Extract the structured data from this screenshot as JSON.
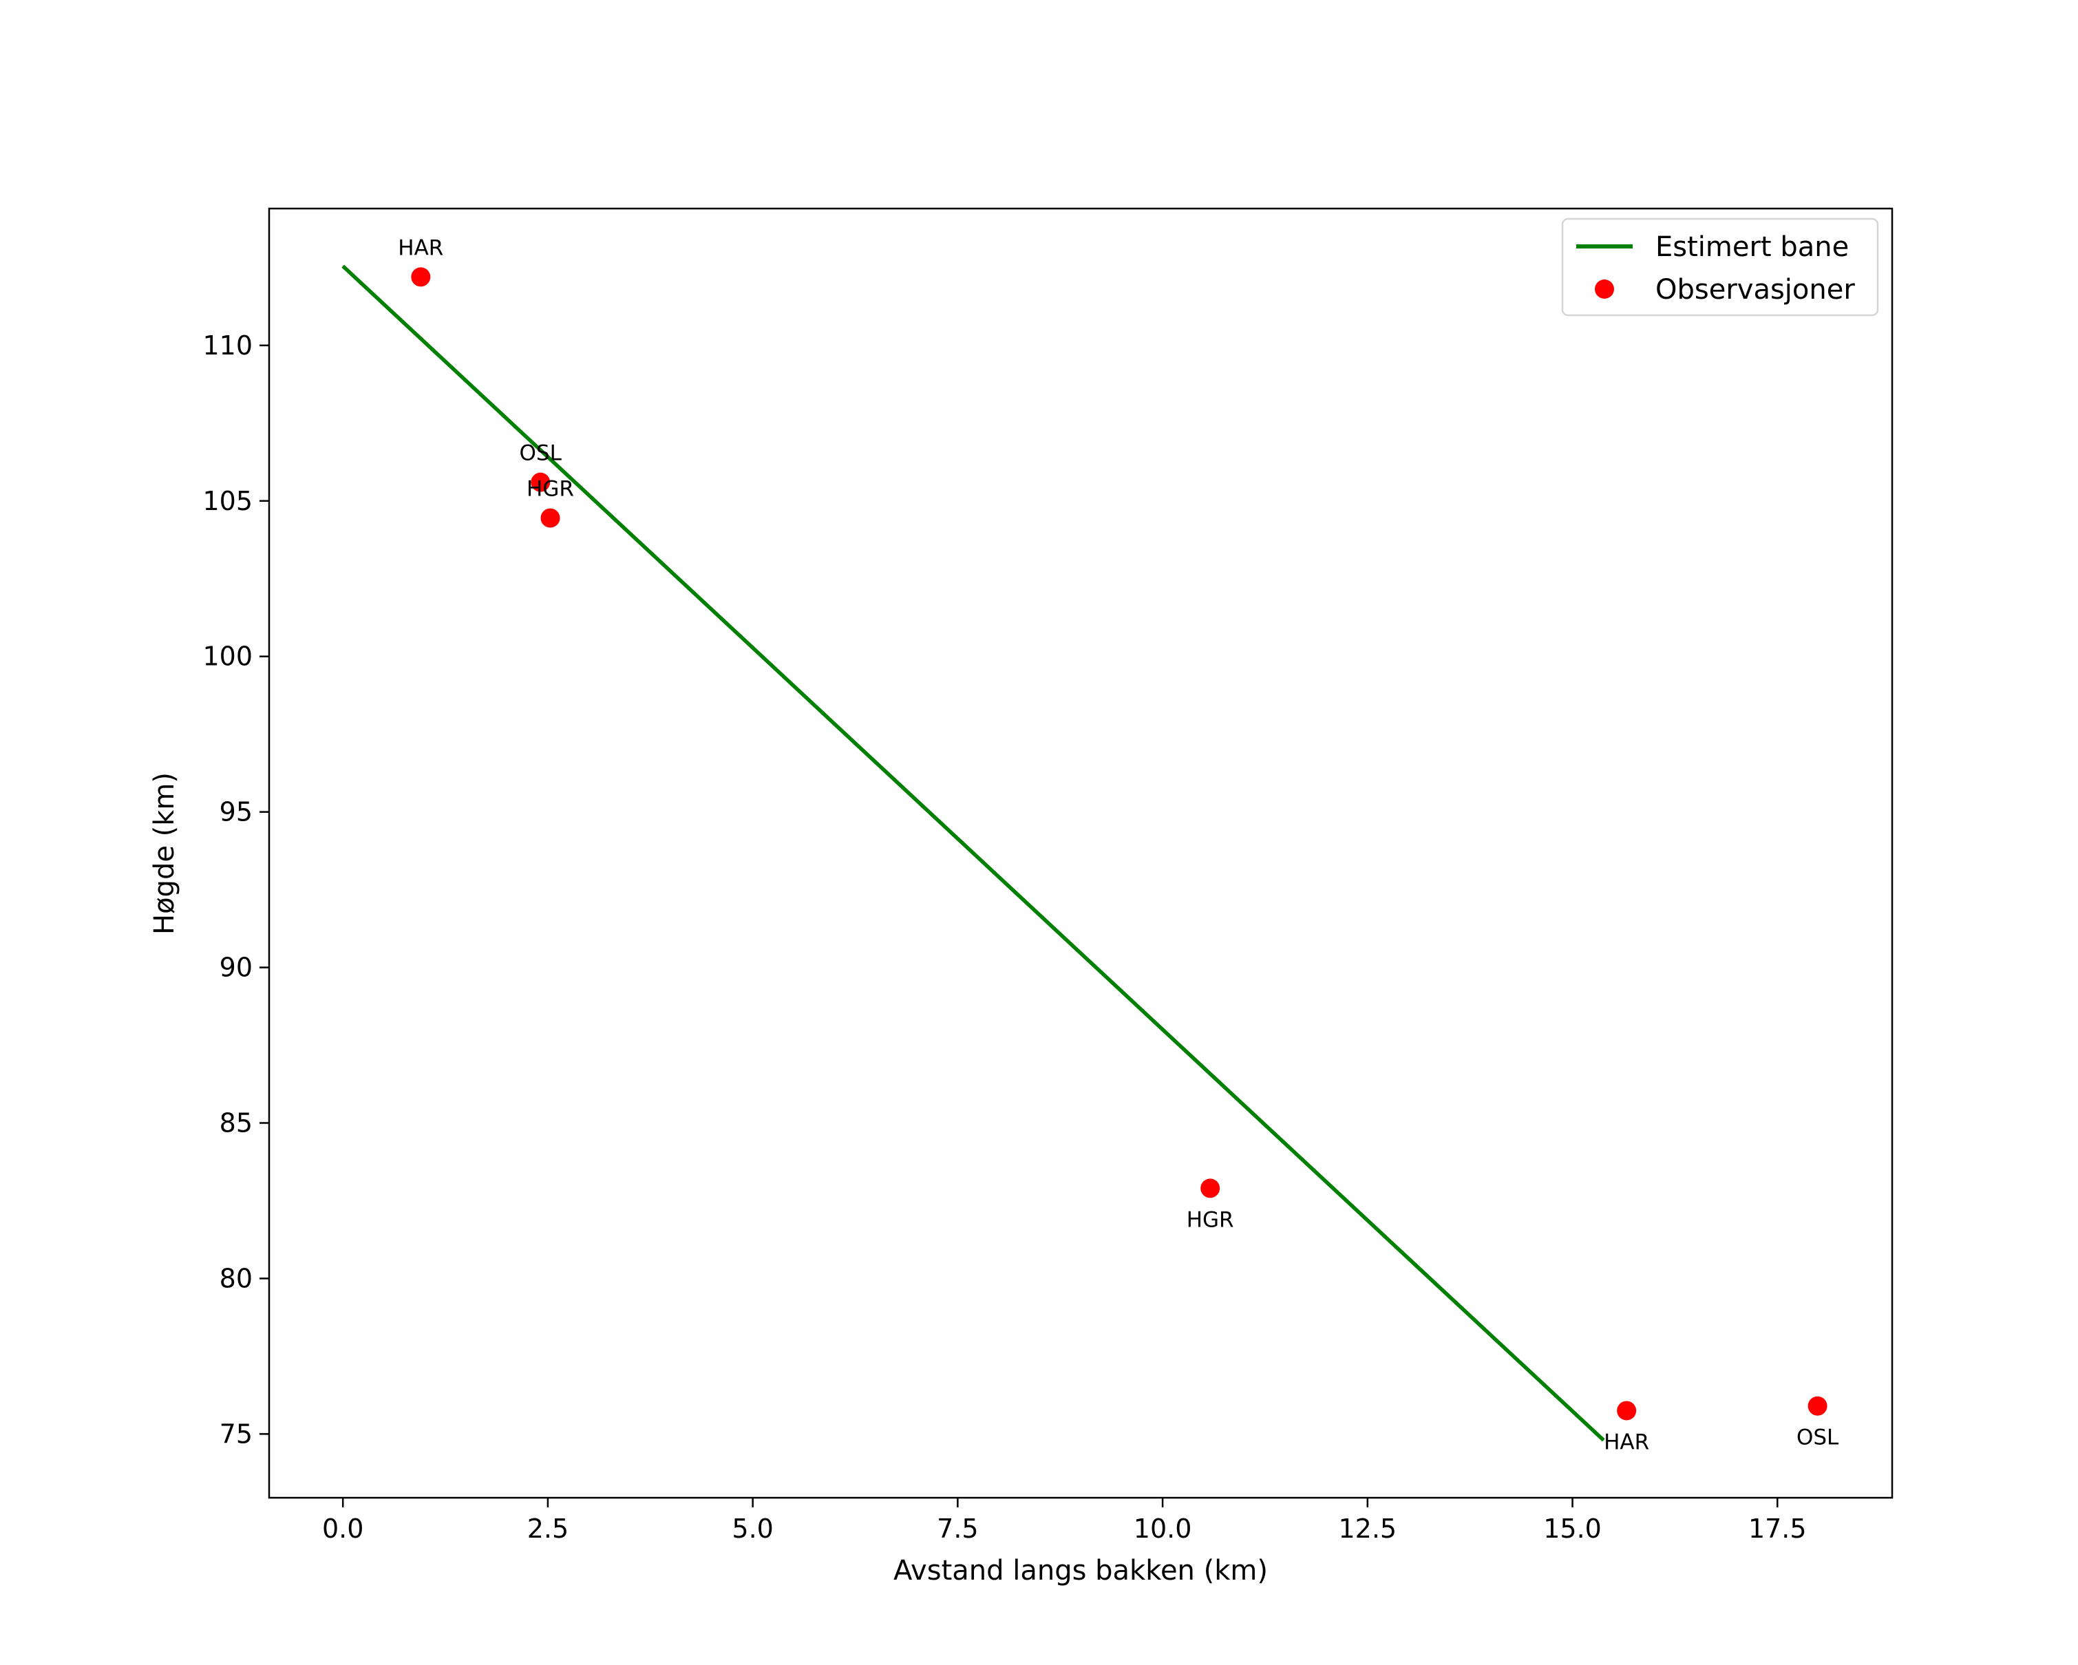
{
  "chart_data": {
    "type": "scatter",
    "title": "",
    "xlabel": "Avstand langs bakken (km)",
    "ylabel": "Høgde (km)",
    "xlim": [
      -0.9,
      18.9
    ],
    "ylim": [
      72.95,
      114.4
    ],
    "xticks": [
      0.0,
      2.5,
      5.0,
      7.5,
      10.0,
      12.5,
      15.0,
      17.5
    ],
    "xtick_labels": [
      "0.0",
      "2.5",
      "5.0",
      "7.5",
      "10.0",
      "12.5",
      "15.0",
      "17.5"
    ],
    "yticks": [
      75,
      80,
      85,
      90,
      95,
      100,
      105,
      110
    ],
    "ytick_labels": [
      "75",
      "80",
      "85",
      "90",
      "95",
      "100",
      "105",
      "110"
    ],
    "grid": false,
    "legend_position": "top-right",
    "series": [
      {
        "name": "Estimert bane",
        "kind": "line",
        "color": "#008000",
        "x": [
          0.0,
          15.38
        ],
        "y": [
          112.55,
          74.8
        ]
      },
      {
        "name": "Observasjoner",
        "kind": "scatter",
        "color": "#ff0000",
        "points": [
          {
            "x": 0.95,
            "y": 112.2,
            "label": "HAR",
            "label_pos": "above"
          },
          {
            "x": 2.41,
            "y": 105.6,
            "label": "OSL",
            "label_pos": "above"
          },
          {
            "x": 2.53,
            "y": 104.45,
            "label": "HGR",
            "label_pos": "above"
          },
          {
            "x": 10.58,
            "y": 82.9,
            "label": "HGR",
            "label_pos": "below"
          },
          {
            "x": 15.66,
            "y": 75.75,
            "label": "HAR",
            "label_pos": "below"
          },
          {
            "x": 17.99,
            "y": 75.9,
            "label": "OSL",
            "label_pos": "below"
          }
        ]
      }
    ]
  }
}
